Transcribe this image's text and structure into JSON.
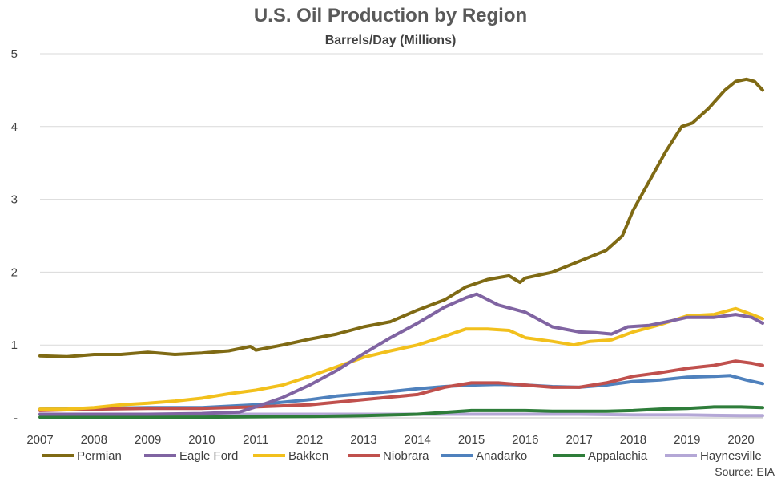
{
  "title": "U.S. Oil Production by Region",
  "subtitle": "Barrels/Day (Millions)",
  "source": "Source: EIA",
  "chart_data": {
    "type": "line",
    "title": "U.S. Oil Production by Region",
    "subtitle": "Barrels/Day (Millions)",
    "xlabel": "",
    "ylabel": "",
    "ylim": [
      0,
      5
    ],
    "xlim": [
      2007,
      2020.4
    ],
    "y_ticks": [
      0,
      1,
      2,
      3,
      4,
      5
    ],
    "y_tick_labels": [
      "-",
      "1",
      "2",
      "3",
      "4",
      "5"
    ],
    "x_ticks": [
      2007,
      2008,
      2009,
      2010,
      2011,
      2012,
      2013,
      2014,
      2015,
      2016,
      2017,
      2018,
      2019,
      2020
    ],
    "grid": true,
    "legend_position": "bottom",
    "series": [
      {
        "name": "Permian",
        "color": "#7F6A14",
        "x": [
          2007,
          2007.5,
          2008,
          2008.5,
          2009,
          2009.5,
          2010,
          2010.5,
          2010.9,
          2011,
          2011.5,
          2012,
          2012.5,
          2013,
          2013.5,
          2014,
          2014.5,
          2014.9,
          2015.3,
          2015.7,
          2015.9,
          2016,
          2016.5,
          2017,
          2017.5,
          2017.8,
          2018,
          2018.3,
          2018.6,
          2018.9,
          2019.1,
          2019.4,
          2019.7,
          2019.9,
          2020.1,
          2020.25,
          2020.4
        ],
        "y": [
          0.85,
          0.84,
          0.87,
          0.87,
          0.9,
          0.87,
          0.89,
          0.92,
          0.98,
          0.93,
          1.0,
          1.08,
          1.15,
          1.25,
          1.32,
          1.48,
          1.62,
          1.8,
          1.9,
          1.95,
          1.86,
          1.92,
          2.0,
          2.15,
          2.3,
          2.5,
          2.85,
          3.25,
          3.65,
          4.0,
          4.05,
          4.25,
          4.5,
          4.62,
          4.65,
          4.62,
          4.5
        ]
      },
      {
        "name": "Eagle Ford",
        "color": "#8064A2",
        "x": [
          2007,
          2009,
          2010,
          2010.7,
          2011,
          2011.5,
          2012,
          2012.5,
          2013,
          2013.5,
          2014,
          2014.5,
          2014.9,
          2015.1,
          2015.5,
          2016,
          2016.5,
          2017,
          2017.3,
          2017.6,
          2017.9,
          2018.3,
          2018.7,
          2019,
          2019.5,
          2019.9,
          2020.2,
          2020.4
        ],
        "y": [
          0.05,
          0.05,
          0.06,
          0.08,
          0.15,
          0.28,
          0.45,
          0.65,
          0.88,
          1.1,
          1.3,
          1.52,
          1.65,
          1.7,
          1.55,
          1.45,
          1.25,
          1.18,
          1.17,
          1.15,
          1.25,
          1.27,
          1.33,
          1.38,
          1.38,
          1.42,
          1.38,
          1.3
        ]
      },
      {
        "name": "Bakken",
        "color": "#F2C01C",
        "x": [
          2007,
          2007.5,
          2008,
          2008.5,
          2009,
          2009.5,
          2010,
          2010.5,
          2011,
          2011.5,
          2012,
          2012.5,
          2013,
          2013.5,
          2014,
          2014.5,
          2014.9,
          2015.3,
          2015.7,
          2016,
          2016.5,
          2016.9,
          2017.2,
          2017.6,
          2018,
          2018.5,
          2019,
          2019.5,
          2019.9,
          2020.2,
          2020.4
        ],
        "y": [
          0.12,
          0.12,
          0.14,
          0.18,
          0.2,
          0.23,
          0.27,
          0.33,
          0.38,
          0.45,
          0.57,
          0.7,
          0.83,
          0.92,
          1.0,
          1.12,
          1.22,
          1.22,
          1.2,
          1.1,
          1.05,
          1.0,
          1.05,
          1.07,
          1.18,
          1.28,
          1.4,
          1.42,
          1.5,
          1.42,
          1.36
        ]
      },
      {
        "name": "Niobrara",
        "color": "#C0504D",
        "x": [
          2007,
          2008,
          2009,
          2010,
          2011,
          2012,
          2013,
          2014,
          2014.5,
          2015,
          2015.5,
          2016,
          2016.5,
          2017,
          2017.5,
          2018,
          2018.5,
          2019,
          2019.5,
          2019.9,
          2020.2,
          2020.4
        ],
        "y": [
          0.1,
          0.12,
          0.13,
          0.13,
          0.15,
          0.18,
          0.25,
          0.32,
          0.42,
          0.48,
          0.48,
          0.45,
          0.42,
          0.42,
          0.48,
          0.57,
          0.62,
          0.68,
          0.72,
          0.78,
          0.75,
          0.72
        ]
      },
      {
        "name": "Anadarko",
        "color": "#4F81BD",
        "x": [
          2007,
          2008,
          2009,
          2010,
          2011,
          2012,
          2012.5,
          2013,
          2013.5,
          2014,
          2014.5,
          2015,
          2015.5,
          2016,
          2016.5,
          2017,
          2017.5,
          2018,
          2018.5,
          2019,
          2019.5,
          2019.8,
          2020.1,
          2020.4
        ],
        "y": [
          0.12,
          0.13,
          0.14,
          0.14,
          0.18,
          0.25,
          0.3,
          0.33,
          0.36,
          0.4,
          0.43,
          0.45,
          0.46,
          0.45,
          0.43,
          0.42,
          0.45,
          0.5,
          0.52,
          0.56,
          0.57,
          0.58,
          0.52,
          0.47
        ]
      },
      {
        "name": "Appalachia",
        "color": "#2E7D3A",
        "x": [
          2007,
          2010,
          2012,
          2013,
          2014,
          2015,
          2015.5,
          2016,
          2016.5,
          2017,
          2017.5,
          2018,
          2018.5,
          2019,
          2019.5,
          2020,
          2020.4
        ],
        "y": [
          0.01,
          0.01,
          0.02,
          0.03,
          0.05,
          0.1,
          0.1,
          0.1,
          0.09,
          0.09,
          0.09,
          0.1,
          0.12,
          0.13,
          0.15,
          0.15,
          0.14
        ]
      },
      {
        "name": "Haynesville",
        "color": "#B4A7D6",
        "x": [
          2007,
          2010,
          2012,
          2013,
          2014,
          2015,
          2016,
          2017,
          2018,
          2019,
          2020,
          2020.4
        ],
        "y": [
          0.05,
          0.05,
          0.05,
          0.05,
          0.05,
          0.05,
          0.05,
          0.05,
          0.04,
          0.04,
          0.03,
          0.03
        ]
      }
    ]
  }
}
